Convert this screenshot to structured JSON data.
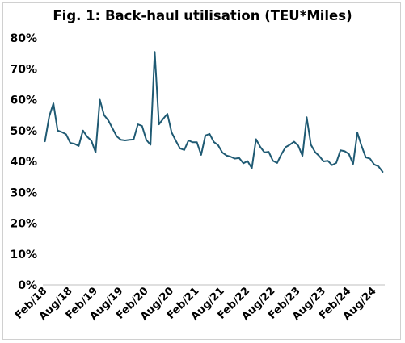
{
  "chart_data": {
    "type": "line",
    "title": "Fig. 1: Back-haul utilisation (TEU*Miles)",
    "xlabel": "",
    "ylabel": "",
    "ylim": [
      0,
      80
    ],
    "y_ticks": [
      "0%",
      "10%",
      "20%",
      "30%",
      "40%",
      "50%",
      "60%",
      "70%",
      "80%"
    ],
    "y_tick_values": [
      0,
      10,
      20,
      30,
      40,
      50,
      60,
      70,
      80
    ],
    "x_tick_labels": [
      "Feb/18",
      "Aug/18",
      "Feb/19",
      "Aug/19",
      "Feb/20",
      "Aug/20",
      "Feb/21",
      "Aug/21",
      "Feb/22",
      "Aug/22",
      "Feb/23",
      "Aug/23",
      "Feb/24",
      "Aug/24"
    ],
    "x_start": "Feb/18",
    "x_end": "Sep/24",
    "grid": false,
    "series": [
      {
        "color": "#1f5a73",
        "values": [
          46.5,
          54.5,
          58.8,
          50,
          49.5,
          48.8,
          46,
          45.7,
          45,
          50,
          48,
          46.7,
          42.9,
          60,
          55,
          53.3,
          50.7,
          48.1,
          47,
          46.8,
          47,
          47.1,
          52,
          51.5,
          47,
          45.4,
          75.5,
          52,
          53.8,
          55.4,
          49.4,
          46.7,
          44.2,
          43.7,
          46.8,
          46.2,
          46.2,
          42.1,
          48.4,
          48.9,
          46.3,
          45.3,
          42.9,
          41.9,
          41.5,
          40.9,
          41.1,
          39.4,
          40.1,
          37.8,
          47.2,
          44.7,
          42.9,
          43.1,
          40.2,
          39.5,
          42.3,
          44.6,
          45.4,
          46.4,
          45.1,
          41.8,
          54.3,
          45.4,
          43,
          41.7,
          40,
          40.2,
          38.8,
          39.5,
          43.6,
          43.3,
          42.4,
          39.2,
          49.3,
          45,
          41.3,
          40.9,
          39,
          38.4,
          36.6
        ]
      }
    ]
  }
}
